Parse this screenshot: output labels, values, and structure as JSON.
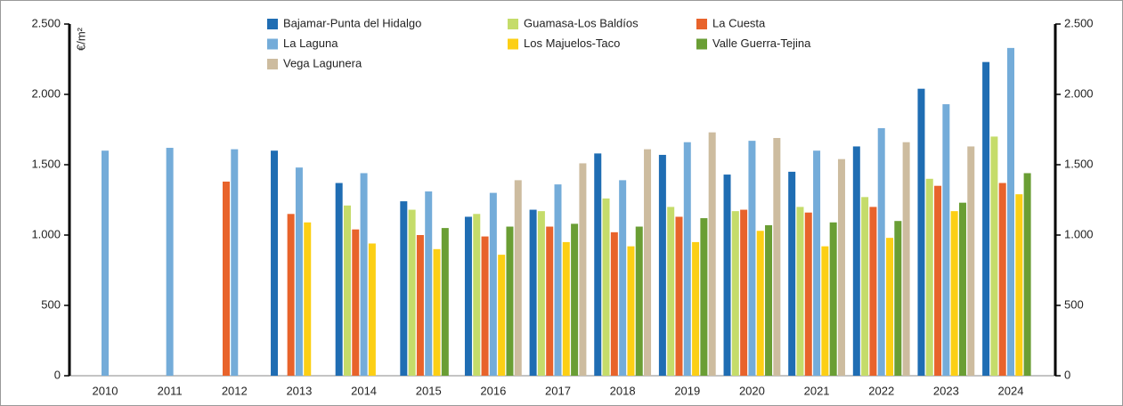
{
  "chart_data": {
    "type": "bar",
    "y_label": "€/m²",
    "categories": [
      "2010",
      "2011",
      "2012",
      "2013",
      "2014",
      "2015",
      "2016",
      "2017",
      "2018",
      "2019",
      "2020",
      "2021",
      "2022",
      "2023",
      "2024"
    ],
    "series": [
      {
        "name": "Bajamar-Punta del Hidalgo",
        "color": "#1f6db3",
        "values": [
          null,
          null,
          null,
          1600,
          1370,
          1240,
          1130,
          1180,
          1580,
          1570,
          1430,
          1450,
          1630,
          2040,
          2230
        ]
      },
      {
        "name": "Guamasa-Los Baldíos",
        "color": "#c5dc6a",
        "values": [
          null,
          null,
          null,
          null,
          1210,
          1180,
          1150,
          1170,
          1260,
          1200,
          1170,
          1200,
          1270,
          1400,
          1700
        ]
      },
      {
        "name": "La Cuesta",
        "color": "#e8632b",
        "values": [
          null,
          null,
          1380,
          1150,
          1040,
          1000,
          990,
          1060,
          1020,
          1130,
          1180,
          1160,
          1200,
          1350,
          1370
        ]
      },
      {
        "name": "La Laguna",
        "color": "#74acd9",
        "values": [
          1600,
          1620,
          1610,
          1480,
          1440,
          1310,
          1300,
          1360,
          1390,
          1660,
          1670,
          1600,
          1760,
          1930,
          2330
        ]
      },
      {
        "name": "Los Majuelos-Taco",
        "color": "#fccf15",
        "values": [
          null,
          null,
          null,
          1090,
          940,
          900,
          860,
          950,
          920,
          950,
          1030,
          920,
          980,
          1170,
          1290
        ]
      },
      {
        "name": "Valle Guerra-Tejina",
        "color": "#6a9e34",
        "values": [
          null,
          null,
          null,
          null,
          null,
          1050,
          1060,
          1080,
          1060,
          1120,
          1070,
          1090,
          1100,
          1230,
          1440
        ]
      },
      {
        "name": "Vega Lagunera",
        "color": "#cdbc9f",
        "values": [
          null,
          null,
          null,
          null,
          null,
          null,
          1390,
          1510,
          1610,
          1730,
          1690,
          1540,
          1660,
          1630,
          null
        ]
      }
    ],
    "ylim": [
      0,
      2500
    ],
    "yticks": [
      0,
      500,
      {
        "value": 1000,
        "label": "1.000"
      },
      {
        "value": 1500,
        "label": "1.500"
      },
      {
        "value": 2000,
        "label": "2.000"
      },
      {
        "value": 2500,
        "label": "2.500"
      }
    ],
    "y2lim": [
      0,
      2500
    ],
    "y2ticks": [
      0,
      500,
      {
        "value": 1000,
        "label": "1.000"
      },
      {
        "value": 1500,
        "label": "1.500"
      },
      {
        "value": 2000,
        "label": "2.000"
      },
      {
        "value": 2500,
        "label": "2.500"
      }
    ],
    "legend": "top"
  }
}
